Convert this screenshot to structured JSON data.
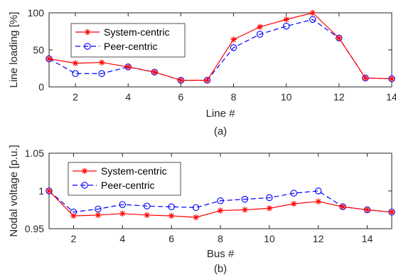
{
  "chart_data": [
    {
      "type": "line",
      "caption": "(a)",
      "xlabel": "Line #",
      "ylabel": "Line loading [%]",
      "xlim": [
        1,
        14
      ],
      "ylim": [
        0,
        100
      ],
      "xticks": [
        2,
        4,
        6,
        8,
        10,
        12,
        14
      ],
      "yticks": [
        0,
        50,
        100
      ],
      "x": [
        1,
        2,
        3,
        4,
        5,
        6,
        7,
        8,
        9,
        10,
        11,
        12,
        13,
        14
      ],
      "legend_position": "upper-left",
      "grid": false,
      "series": [
        {
          "name": "System-centric",
          "color": "#ff0000",
          "line_style": "solid",
          "marker": "asterisk",
          "values": [
            38,
            32,
            33,
            27,
            20,
            9,
            9,
            64,
            81,
            91,
            100,
            66,
            12,
            11
          ]
        },
        {
          "name": "Peer-centric",
          "color": "#0000ff",
          "line_style": "dashed",
          "marker": "circle",
          "values": [
            38,
            18,
            18,
            27,
            20,
            9,
            9,
            53,
            71,
            82,
            91,
            66,
            12,
            11
          ]
        }
      ]
    },
    {
      "type": "line",
      "caption": "(b)",
      "xlabel": "Bus #",
      "ylabel": "Nodal voltage [p.u.]",
      "xlim": [
        1,
        15
      ],
      "ylim": [
        0.95,
        1.05
      ],
      "xticks": [
        2,
        4,
        6,
        8,
        10,
        12,
        14
      ],
      "yticks": [
        0.95,
        1,
        1.05
      ],
      "ytick_labels": [
        "0.95",
        "1",
        "1.05"
      ],
      "x": [
        1,
        2,
        3,
        4,
        5,
        6,
        7,
        8,
        9,
        10,
        11,
        12,
        13,
        14,
        15
      ],
      "legend_position": "upper-left",
      "grid": false,
      "series": [
        {
          "name": "System-centric",
          "color": "#ff0000",
          "line_style": "solid",
          "marker": "asterisk",
          "values": [
            1.0,
            0.967,
            0.968,
            0.97,
            0.968,
            0.967,
            0.965,
            0.974,
            0.975,
            0.977,
            0.983,
            0.986,
            0.979,
            0.975,
            0.972
          ]
        },
        {
          "name": "Peer-centric",
          "color": "#0000ff",
          "line_style": "dashed",
          "marker": "circle",
          "values": [
            1.0,
            0.972,
            0.976,
            0.982,
            0.98,
            0.979,
            0.978,
            0.987,
            0.989,
            0.991,
            0.997,
            1.0,
            0.979,
            0.975,
            0.972
          ]
        }
      ]
    }
  ]
}
